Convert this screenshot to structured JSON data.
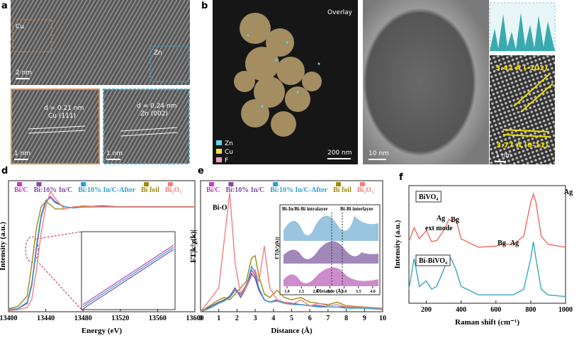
{
  "panels": [
    {
      "label": "a",
      "texts": [
        "Cu",
        "Zn",
        "2 nm",
        "d = 0.21 nm",
        "Cu (111)",
        "1 nm",
        "d = 0.24 nm",
        "Zn (002)",
        "1 nm"
      ]
    },
    {
      "label": "b",
      "texts": [
        "Overlay",
        "Zn",
        "Cu",
        "F",
        "200 nm"
      ]
    },
    {
      "label": "c",
      "texts": [
        "10 nm",
        "3.42 Å (-101)",
        "3.77 Å (0-11)",
        "1 nm"
      ]
    }
  ],
  "chart_data": [
    {
      "type": "line",
      "label": "d",
      "xlabel": "Energy (eV)",
      "ylabel": "Intensity (a.u.)",
      "legend": "top",
      "x": [
        13400,
        13410,
        13420,
        13425,
        13430,
        13435,
        13440,
        13445,
        13450,
        13460,
        13470,
        13480,
        13500,
        13520,
        13540,
        13560,
        13580,
        13600
      ],
      "xlim": [
        13400,
        13600
      ],
      "xticks": [
        13400,
        13440,
        13480,
        13520,
        13560,
        13600
      ],
      "ylim": [
        0,
        1.25
      ],
      "series": [
        {
          "name": "Bi/C",
          "color": "#c040c0",
          "values": [
            0.02,
            0.03,
            0.08,
            0.25,
            0.6,
            0.9,
            1.05,
            1.1,
            1.05,
            1.0,
            0.99,
            1.0,
            1.01,
            1.0,
            1.0,
            1.0,
            1.0,
            1.0
          ]
        },
        {
          "name": "Bi:10% In/C",
          "color": "#7b4fa0",
          "values": [
            0.02,
            0.03,
            0.08,
            0.26,
            0.62,
            0.91,
            1.05,
            1.09,
            1.05,
            1.0,
            0.99,
            1.0,
            1.01,
            1.0,
            1.0,
            1.0,
            1.0,
            1.0
          ]
        },
        {
          "name": "Bi:10% In/C-After",
          "color": "#2aa0d0",
          "values": [
            0.02,
            0.03,
            0.09,
            0.27,
            0.63,
            0.92,
            1.06,
            1.09,
            1.04,
            1.0,
            0.99,
            1.0,
            1.0,
            1.0,
            1.0,
            1.0,
            1.0,
            1.0
          ]
        },
        {
          "name": "Bi foil",
          "color": "#a08a10",
          "values": [
            0.03,
            0.05,
            0.15,
            0.45,
            0.8,
            1.0,
            1.05,
            1.02,
            0.98,
            0.98,
            1.0,
            1.0,
            1.0,
            1.0,
            1.0,
            1.0,
            1.0,
            1.0
          ]
        },
        {
          "name": "Bi₂O₃",
          "color": "#f08080",
          "values": [
            0.01,
            0.02,
            0.04,
            0.12,
            0.4,
            0.75,
            1.0,
            1.15,
            1.08,
            0.98,
            1.0,
            1.01,
            1.0,
            1.0,
            1.0,
            1.0,
            1.0,
            1.0
          ]
        }
      ]
    },
    {
      "type": "line",
      "label": "e",
      "xlabel": "Distance (Å)",
      "ylabel": "FT|k²χ(k)|",
      "legend": "top",
      "annotations": [
        "Bi-O"
      ],
      "x": [
        0,
        0.5,
        1,
        1.3,
        1.6,
        1.9,
        2.2,
        2.5,
        2.8,
        3.0,
        3.2,
        3.5,
        3.8,
        4.2,
        4.6,
        5,
        5.5,
        6,
        6.5,
        7,
        7.5,
        8,
        9,
        10
      ],
      "xlim": [
        0,
        10
      ],
      "xticks": [
        0,
        1,
        2,
        3,
        4,
        5,
        6,
        7,
        8,
        9,
        10
      ],
      "ylim": [
        0,
        1.1
      ],
      "series": [
        {
          "name": "Bi/C",
          "color": "#c040c0",
          "values": [
            0,
            0.04,
            0.08,
            0.1,
            0.12,
            0.18,
            0.15,
            0.22,
            0.35,
            0.3,
            0.2,
            0.1,
            0.08,
            0.1,
            0.08,
            0.07,
            0.06,
            0.05,
            0.05,
            0.04,
            0.04,
            0.04,
            0.03,
            0.02
          ]
        },
        {
          "name": "Bi:10% In/C",
          "color": "#7b4fa0",
          "values": [
            0,
            0.04,
            0.08,
            0.1,
            0.13,
            0.2,
            0.12,
            0.2,
            0.32,
            0.28,
            0.18,
            0.1,
            0.08,
            0.1,
            0.08,
            0.07,
            0.06,
            0.05,
            0.05,
            0.04,
            0.04,
            0.04,
            0.03,
            0.02
          ]
        },
        {
          "name": "Bi:10% In/C-After",
          "color": "#2aa0d0",
          "values": [
            0,
            0.03,
            0.07,
            0.09,
            0.12,
            0.18,
            0.14,
            0.2,
            0.38,
            0.33,
            0.2,
            0.1,
            0.08,
            0.09,
            0.07,
            0.06,
            0.06,
            0.05,
            0.04,
            0.04,
            0.04,
            0.03,
            0.03,
            0.02
          ]
        },
        {
          "name": "Bi foil",
          "color": "#a08a10",
          "values": [
            0,
            0.05,
            0.1,
            0.12,
            0.1,
            0.15,
            0.2,
            0.25,
            0.45,
            0.47,
            0.3,
            0.15,
            0.12,
            0.18,
            0.12,
            0.1,
            0.12,
            0.08,
            0.07,
            0.06,
            0.08,
            0.05,
            0.04,
            0.03
          ]
        },
        {
          "name": "Bi₂O₃",
          "color": "#f08080",
          "values": [
            0,
            0.1,
            0.2,
            0.6,
            1.0,
            0.4,
            0.15,
            0.2,
            0.3,
            0.35,
            0.25,
            0.55,
            0.2,
            0.1,
            0.08,
            0.06,
            0.1,
            0.05,
            0.07,
            0.05,
            0.06,
            0.04,
            0.04,
            0.03
          ]
        }
      ],
      "inset": {
        "labels": [
          "Bi-In/Bi-Bi intralayer",
          "Bi-Bi interlayer"
        ],
        "xlabel": "Distance (Å)",
        "ylabel": "FT(k²χ(k))",
        "xlim": [
          0.8,
          4.2
        ],
        "xticks": [
          {
            "value": 1,
            "label": "1.0"
          },
          1.5,
          {
            "value": 2,
            "label": "2.0"
          },
          2.5,
          {
            "value": 3,
            "label": "3.0"
          },
          3.5,
          {
            "value": 4,
            "label": "4.0"
          }
        ]
      }
    },
    {
      "type": "line",
      "label": "f",
      "xlabel": "Raman shift (cm⁻¹)",
      "ylabel": "Intensity (a.u.)",
      "legend": "label-boxes",
      "annotations": [
        "ext mode",
        "Ag",
        "Bg",
        "Bg",
        "Ag",
        "Ag"
      ],
      "x": [
        100,
        130,
        160,
        200,
        230,
        260,
        300,
        330,
        350,
        370,
        400,
        500,
        600,
        640,
        700,
        760,
        800,
        815,
        830,
        860,
        900,
        1000
      ],
      "xlim": [
        100,
        1000
      ],
      "xticks": [
        200,
        400,
        600,
        800,
        1000
      ],
      "ylim": [
        0,
        2.1
      ],
      "series": [
        {
          "name": "BiVO₄",
          "color": "#ef6a5f",
          "values": [
            1.1,
            1.35,
            1.15,
            1.3,
            1.1,
            1.12,
            1.3,
            1.5,
            1.45,
            1.5,
            1.15,
            1.0,
            1.02,
            1.06,
            1.05,
            1.2,
            1.8,
            1.95,
            1.8,
            1.2,
            1.05,
            1.0
          ]
        },
        {
          "name": "Bi-BiVO₄",
          "color": "#3aa6c0",
          "values": [
            0.25,
            0.8,
            0.3,
            0.4,
            0.25,
            0.3,
            0.6,
            0.85,
            0.75,
            0.6,
            0.3,
            0.15,
            0.15,
            0.15,
            0.15,
            0.25,
            0.8,
            1.1,
            0.8,
            0.25,
            0.15,
            0.12
          ]
        }
      ]
    }
  ]
}
